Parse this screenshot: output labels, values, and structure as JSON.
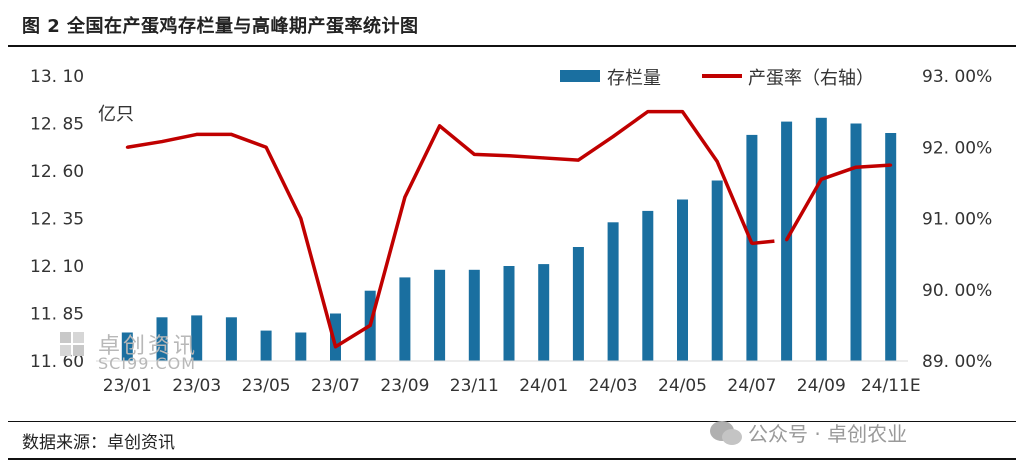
{
  "title": "图 2 全国在产蛋鸡存栏量与高峰期产蛋率统计图",
  "source": "数据来源：卓创资讯",
  "watermark_logo": "卓创资讯",
  "watermark_logo_en": "SCI99.COM",
  "watermark_right": "公众号 · 卓创农业",
  "chart_data": {
    "type": "bar",
    "combo": "bar + line (dual axis)",
    "title": "图 2 全国在产蛋鸡存栏量与高峰期产蛋率统计图",
    "categories": [
      "23/01",
      "23/02",
      "23/03",
      "23/04",
      "23/05",
      "23/06",
      "23/07",
      "23/08",
      "23/09",
      "23/10",
      "23/11",
      "23/12",
      "24/01",
      "24/02",
      "24/03",
      "24/04",
      "24/05",
      "24/06",
      "24/07",
      "24/08",
      "24/09",
      "24/10",
      "24/11E"
    ],
    "x_tick_labels": [
      "23/01",
      "23/03",
      "23/05",
      "23/07",
      "23/09",
      "23/11",
      "24/01",
      "24/03",
      "24/05",
      "24/07",
      "24/09",
      "24/11E"
    ],
    "y_left_unit_label": "亿只",
    "y_left_ticks": [
      "13. 10",
      "12. 85",
      "12. 60",
      "12. 35",
      "12. 10",
      "11. 85",
      "11. 60"
    ],
    "y_left_lim": [
      11.6,
      13.1
    ],
    "y_right_ticks": [
      "93. 00%",
      "92. 00%",
      "91. 00%",
      "90. 00%",
      "89. 00%"
    ],
    "y_right_lim": [
      89.0,
      93.0
    ],
    "legend_position": "top-right",
    "grid": false,
    "series": [
      {
        "name": "存栏量",
        "type": "bar",
        "axis": "left",
        "color": "#1a6fa0",
        "values": [
          11.75,
          11.83,
          11.84,
          11.83,
          11.76,
          11.75,
          11.85,
          11.97,
          12.04,
          12.08,
          12.08,
          12.1,
          12.11,
          12.2,
          12.33,
          12.39,
          12.45,
          12.55,
          12.79,
          12.86,
          12.88,
          12.85,
          12.8
        ]
      },
      {
        "name": "产蛋率（右轴）",
        "type": "line",
        "axis": "right",
        "color": "#c00000",
        "values": [
          92.0,
          92.08,
          92.18,
          92.18,
          92.0,
          91.0,
          89.2,
          89.5,
          91.3,
          92.3,
          91.9,
          91.88,
          91.85,
          91.82,
          92.15,
          92.5,
          92.5,
          91.8,
          90.65,
          90.7,
          91.55,
          91.72,
          91.75
        ]
      }
    ]
  }
}
